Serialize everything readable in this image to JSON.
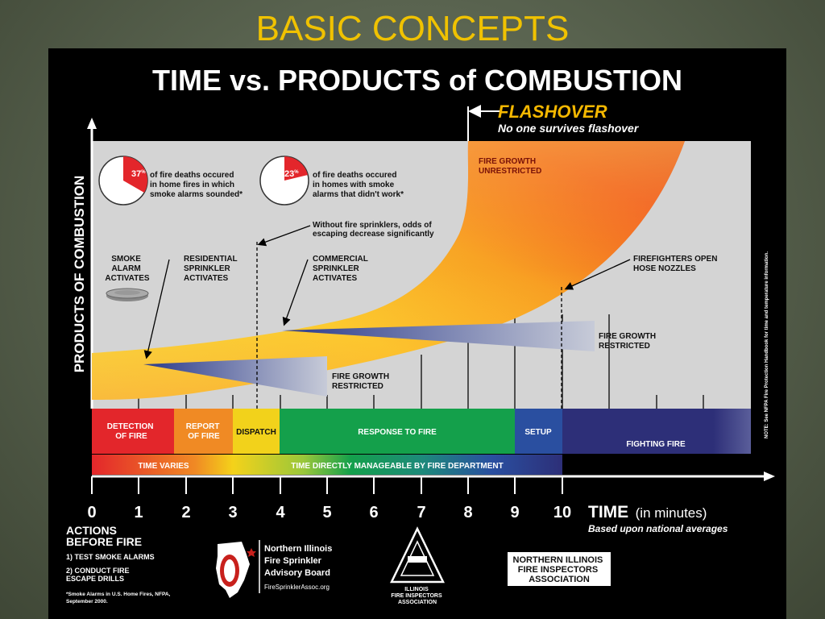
{
  "slide": {
    "title": "BASIC CONCEPTS"
  },
  "poster": {
    "title": "TIME vs. PRODUCTS of COMBUSTION",
    "flashover": {
      "label": "FLASHOVER",
      "subtitle": "No one survives flashover"
    },
    "y_axis_label": "PRODUCTS OF COMBUSTION",
    "stats": [
      {
        "percent": "37",
        "sup": "%",
        "text": [
          "of fire deaths occured",
          "in home fires in which",
          "smoke alarms sounded*"
        ]
      },
      {
        "percent": "23",
        "sup": "%",
        "text": [
          "of fire deaths occured",
          "in homes with smoke",
          "alarms that didn't work*"
        ]
      }
    ],
    "callouts": {
      "smoke_alarm": [
        "SMOKE",
        "ALARM",
        "ACTIVATES"
      ],
      "residential": [
        "RESIDENTIAL",
        "SPRINKLER",
        "ACTIVATES"
      ],
      "commercial": [
        "COMMERCIAL",
        "SPRINKLER",
        "ACTIVATES"
      ],
      "odds": [
        "Without fire sprinklers, odds of",
        "escaping decrease significantly"
      ],
      "fire_growth_unrestricted": [
        "FIRE GROWTH",
        "UNRESTRICTED"
      ],
      "firefighters": [
        "FIREFIGHTERS OPEN",
        "HOSE NOZZLES"
      ],
      "restricted_right": [
        "FIRE GROWTH",
        "RESTRICTED"
      ],
      "restricted_left": [
        "FIRE GROWTH",
        "RESTRICTED"
      ]
    },
    "note": "NOTE: See NFPA Fire Protection Handbook for time and temperature information.",
    "phases": [
      {
        "label": [
          "DETECTION",
          "OF FIRE"
        ],
        "color": "#e3262b"
      },
      {
        "label": [
          "REPORT",
          "OF FIRE"
        ],
        "color": "#f08a24"
      },
      {
        "label": [
          "DISPATCH"
        ],
        "color": "#f2d21b"
      },
      {
        "label": [
          "RESPONSE TO FIRE"
        ],
        "color": "#14a04b"
      },
      {
        "label": [
          "SETUP"
        ],
        "color": "#2a4fa0"
      },
      {
        "label": [
          "FIGHTING FIRE"
        ],
        "color": "#2d2f78"
      }
    ],
    "bottom_bar": {
      "left": "TIME VARIES",
      "right": "TIME DIRECTLY MANAGEABLE BY FIRE DEPARTMENT"
    },
    "x_ticks": [
      "0",
      "1",
      "2",
      "3",
      "4",
      "5",
      "6",
      "7",
      "8",
      "9",
      "10"
    ],
    "x_axis": {
      "label": "TIME",
      "unit": "(in minutes)",
      "note": "Based upon national averages"
    },
    "actions": {
      "title": [
        "ACTIONS",
        "BEFORE FIRE"
      ],
      "items": [
        "1)  TEST SMOKE ALARMS",
        "2)  CONDUCT FIRE",
        "     ESCAPE DRILLS"
      ],
      "footnote": [
        "*Smoke Alarms in U.S. Home Fires, NFPA,",
        "  September 2000."
      ]
    },
    "logos": {
      "nifsab": [
        "Northern Illinois",
        "Fire Sprinkler",
        "Advisory Board",
        "FireSprinklerAssoc.org"
      ],
      "ifia": [
        "ILLINOIS",
        "FIRE INSPECTORS",
        "ASSOCIATION"
      ],
      "nifia": [
        "NORTHERN ILLINOIS",
        "FIRE INSPECTORS",
        "ASSOCIATION"
      ]
    },
    "colors": {
      "accent": "#f0c200",
      "flashover": "#f5b800"
    }
  }
}
